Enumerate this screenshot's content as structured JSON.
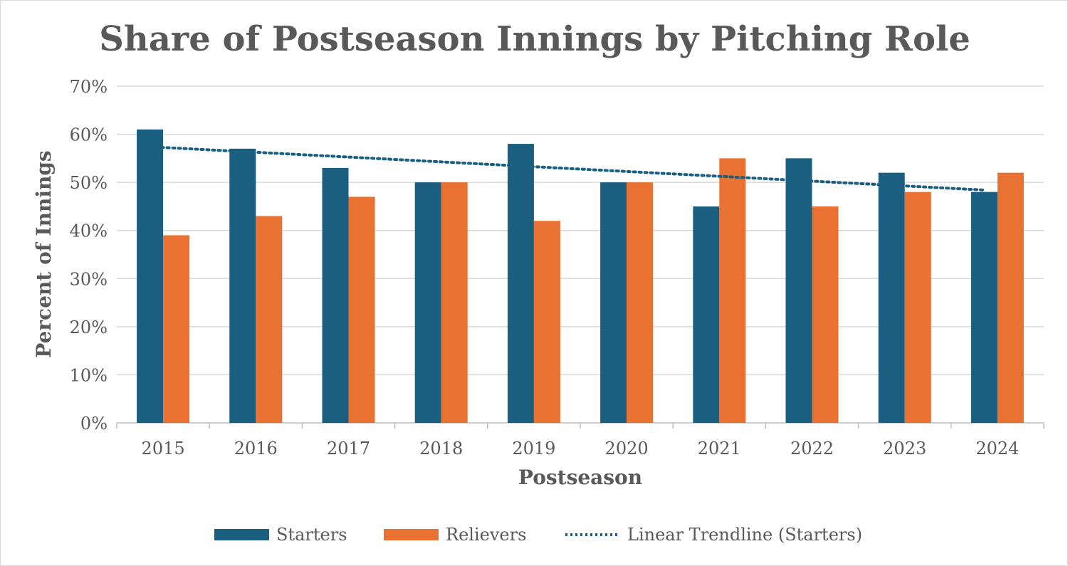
{
  "chart_data": {
    "type": "bar",
    "title": "Share of Postseason Innings by Pitching Role",
    "xlabel": "Postseason",
    "ylabel": "Percent of Innings",
    "ylim": [
      0,
      70
    ],
    "yticks": [
      "0%",
      "10%",
      "20%",
      "30%",
      "40%",
      "50%",
      "60%",
      "70%"
    ],
    "grid": true,
    "legend_position": "bottom",
    "categories": [
      "2015",
      "2016",
      "2017",
      "2018",
      "2019",
      "2020",
      "2021",
      "2022",
      "2023",
      "2024"
    ],
    "series": [
      {
        "name": "Starters",
        "color": "#1a5e80",
        "values": [
          61,
          57,
          53,
          50,
          58,
          50,
          45,
          55,
          52,
          48
        ]
      },
      {
        "name": "Relievers",
        "color": "#e97132",
        "values": [
          39,
          43,
          47,
          50,
          42,
          50,
          55,
          45,
          48,
          52
        ]
      }
    ],
    "trendline": {
      "name": "Linear Trendline (Starters)",
      "type": "linear",
      "of_series": "Starters",
      "color": "#1a5e80",
      "style": "dotted"
    }
  }
}
